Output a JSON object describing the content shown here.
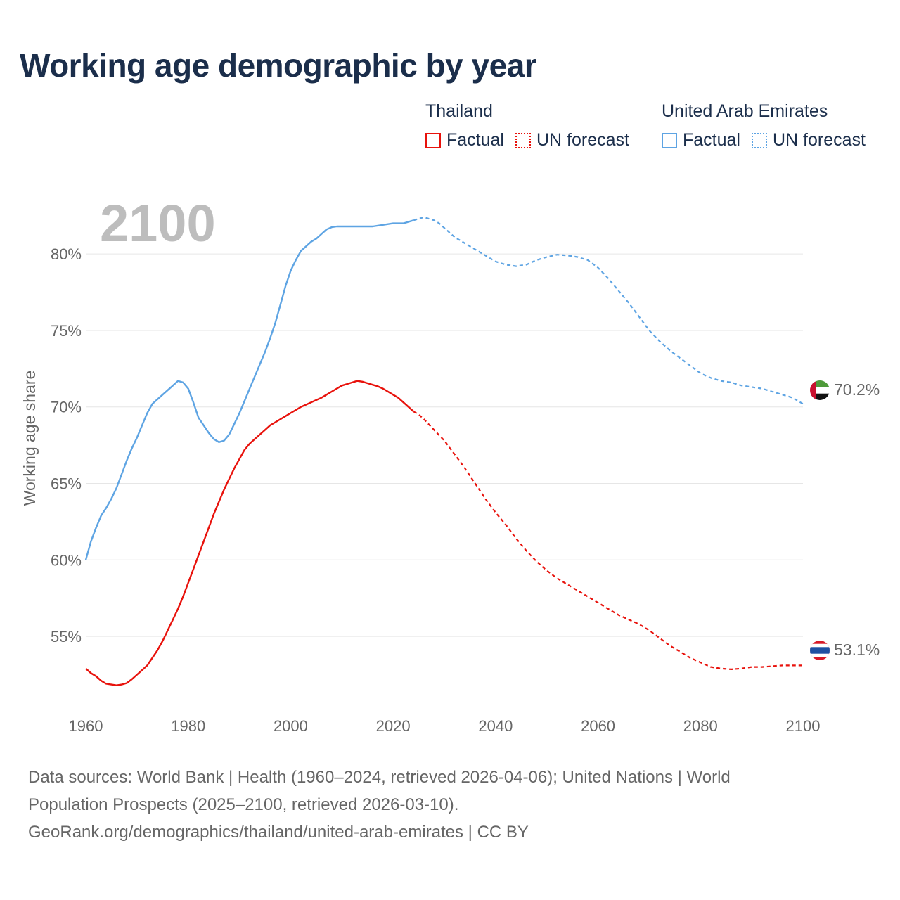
{
  "title": "Working age demographic by year",
  "legend": {
    "groups": [
      {
        "name": "Thailand",
        "color": "#e8120c",
        "factual_label": "Factual",
        "forecast_label": "UN forecast"
      },
      {
        "name": "United Arab Emirates",
        "color": "#5ea4e3",
        "factual_label": "Factual",
        "forecast_label": "UN forecast"
      }
    ]
  },
  "year_label": "2100",
  "footer": {
    "line1": "Data sources: World Bank | Health (1960–2024, retrieved 2026-04-06); United Nations | World",
    "line2": "Population Prospects (2025–2100, retrieved 2026-03-10).",
    "line3": "GeoRank.org/demographics/thailand/united-arab-emirates | CC BY"
  },
  "chart_data": {
    "type": "line",
    "title": "Working age demographic by year",
    "xlabel": "",
    "ylabel": "Working age share",
    "xlim": [
      1960,
      2100
    ],
    "ylim": [
      50.5,
      83.5
    ],
    "x_ticks": [
      1960,
      1980,
      2000,
      2020,
      2040,
      2060,
      2080,
      2100
    ],
    "y_ticks": [
      55,
      60,
      65,
      70,
      75,
      80
    ],
    "y_tick_labels": [
      "55%",
      "60%",
      "65%",
      "70%",
      "75%",
      "80%"
    ],
    "grid": true,
    "factual_end_year": 2024,
    "series": [
      {
        "name": "United Arab Emirates",
        "color": "#5ea4e3",
        "end_label": "70.2%",
        "points": [
          [
            1960,
            60.0
          ],
          [
            1961,
            61.2
          ],
          [
            1962,
            62.1
          ],
          [
            1963,
            62.9
          ],
          [
            1964,
            63.4
          ],
          [
            1965,
            64.0
          ],
          [
            1966,
            64.7
          ],
          [
            1967,
            65.6
          ],
          [
            1968,
            66.5
          ],
          [
            1969,
            67.3
          ],
          [
            1970,
            68.0
          ],
          [
            1971,
            68.8
          ],
          [
            1972,
            69.6
          ],
          [
            1973,
            70.2
          ],
          [
            1974,
            70.5
          ],
          [
            1975,
            70.8
          ],
          [
            1976,
            71.1
          ],
          [
            1977,
            71.4
          ],
          [
            1978,
            71.7
          ],
          [
            1979,
            71.6
          ],
          [
            1980,
            71.2
          ],
          [
            1981,
            70.3
          ],
          [
            1982,
            69.3
          ],
          [
            1983,
            68.8
          ],
          [
            1984,
            68.3
          ],
          [
            1985,
            67.9
          ],
          [
            1986,
            67.7
          ],
          [
            1987,
            67.8
          ],
          [
            1988,
            68.2
          ],
          [
            1989,
            68.9
          ],
          [
            1990,
            69.6
          ],
          [
            1991,
            70.4
          ],
          [
            1992,
            71.2
          ],
          [
            1993,
            72.0
          ],
          [
            1994,
            72.8
          ],
          [
            1995,
            73.6
          ],
          [
            1996,
            74.5
          ],
          [
            1997,
            75.5
          ],
          [
            1998,
            76.7
          ],
          [
            1999,
            77.9
          ],
          [
            2000,
            78.9
          ],
          [
            2001,
            79.6
          ],
          [
            2002,
            80.2
          ],
          [
            2003,
            80.5
          ],
          [
            2004,
            80.8
          ],
          [
            2005,
            81.0
          ],
          [
            2006,
            81.3
          ],
          [
            2007,
            81.6
          ],
          [
            2008,
            81.75
          ],
          [
            2009,
            81.8
          ],
          [
            2010,
            81.8
          ],
          [
            2012,
            81.8
          ],
          [
            2014,
            81.8
          ],
          [
            2016,
            81.8
          ],
          [
            2018,
            81.9
          ],
          [
            2020,
            82.0
          ],
          [
            2022,
            82.0
          ],
          [
            2024,
            82.2
          ],
          [
            2025,
            82.3
          ],
          [
            2026,
            82.4
          ],
          [
            2027,
            82.3
          ],
          [
            2028,
            82.2
          ],
          [
            2029,
            82.0
          ],
          [
            2030,
            81.7
          ],
          [
            2032,
            81.1
          ],
          [
            2034,
            80.7
          ],
          [
            2036,
            80.3
          ],
          [
            2038,
            79.9
          ],
          [
            2040,
            79.5
          ],
          [
            2042,
            79.3
          ],
          [
            2044,
            79.2
          ],
          [
            2046,
            79.3
          ],
          [
            2048,
            79.6
          ],
          [
            2050,
            79.8
          ],
          [
            2052,
            79.95
          ],
          [
            2054,
            79.9
          ],
          [
            2056,
            79.8
          ],
          [
            2058,
            79.6
          ],
          [
            2060,
            79.1
          ],
          [
            2062,
            78.4
          ],
          [
            2064,
            77.6
          ],
          [
            2066,
            76.8
          ],
          [
            2068,
            75.9
          ],
          [
            2070,
            75.0
          ],
          [
            2072,
            74.3
          ],
          [
            2074,
            73.7
          ],
          [
            2076,
            73.2
          ],
          [
            2078,
            72.7
          ],
          [
            2080,
            72.2
          ],
          [
            2082,
            71.9
          ],
          [
            2084,
            71.7
          ],
          [
            2086,
            71.6
          ],
          [
            2088,
            71.4
          ],
          [
            2090,
            71.3
          ],
          [
            2092,
            71.2
          ],
          [
            2094,
            71.0
          ],
          [
            2096,
            70.8
          ],
          [
            2098,
            70.6
          ],
          [
            2100,
            70.2
          ]
        ]
      },
      {
        "name": "Thailand",
        "color": "#e8120c",
        "end_label": "53.1%",
        "points": [
          [
            1960,
            52.9
          ],
          [
            1961,
            52.6
          ],
          [
            1962,
            52.4
          ],
          [
            1963,
            52.1
          ],
          [
            1964,
            51.9
          ],
          [
            1965,
            51.85
          ],
          [
            1966,
            51.8
          ],
          [
            1967,
            51.85
          ],
          [
            1968,
            51.95
          ],
          [
            1969,
            52.2
          ],
          [
            1970,
            52.5
          ],
          [
            1971,
            52.8
          ],
          [
            1972,
            53.1
          ],
          [
            1973,
            53.6
          ],
          [
            1974,
            54.1
          ],
          [
            1975,
            54.7
          ],
          [
            1976,
            55.4
          ],
          [
            1977,
            56.1
          ],
          [
            1978,
            56.8
          ],
          [
            1979,
            57.6
          ],
          [
            1980,
            58.5
          ],
          [
            1981,
            59.4
          ],
          [
            1982,
            60.3
          ],
          [
            1983,
            61.2
          ],
          [
            1984,
            62.1
          ],
          [
            1985,
            63.0
          ],
          [
            1986,
            63.8
          ],
          [
            1987,
            64.6
          ],
          [
            1988,
            65.3
          ],
          [
            1989,
            66.0
          ],
          [
            1990,
            66.6
          ],
          [
            1991,
            67.2
          ],
          [
            1992,
            67.6
          ],
          [
            1993,
            67.9
          ],
          [
            1994,
            68.2
          ],
          [
            1995,
            68.5
          ],
          [
            1996,
            68.8
          ],
          [
            1997,
            69.0
          ],
          [
            1998,
            69.2
          ],
          [
            1999,
            69.4
          ],
          [
            2000,
            69.6
          ],
          [
            2001,
            69.8
          ],
          [
            2002,
            70.0
          ],
          [
            2003,
            70.15
          ],
          [
            2004,
            70.3
          ],
          [
            2005,
            70.45
          ],
          [
            2006,
            70.6
          ],
          [
            2007,
            70.8
          ],
          [
            2008,
            71.0
          ],
          [
            2009,
            71.2
          ],
          [
            2010,
            71.4
          ],
          [
            2011,
            71.5
          ],
          [
            2012,
            71.6
          ],
          [
            2013,
            71.7
          ],
          [
            2014,
            71.65
          ],
          [
            2015,
            71.55
          ],
          [
            2016,
            71.45
          ],
          [
            2017,
            71.35
          ],
          [
            2018,
            71.2
          ],
          [
            2019,
            71.0
          ],
          [
            2020,
            70.8
          ],
          [
            2021,
            70.6
          ],
          [
            2022,
            70.3
          ],
          [
            2023,
            70.0
          ],
          [
            2024,
            69.7
          ],
          [
            2025,
            69.5
          ],
          [
            2026,
            69.2
          ],
          [
            2028,
            68.5
          ],
          [
            2030,
            67.8
          ],
          [
            2032,
            66.9
          ],
          [
            2034,
            66.0
          ],
          [
            2036,
            65.0
          ],
          [
            2038,
            64.0
          ],
          [
            2040,
            63.1
          ],
          [
            2042,
            62.3
          ],
          [
            2044,
            61.4
          ],
          [
            2046,
            60.6
          ],
          [
            2048,
            59.9
          ],
          [
            2050,
            59.3
          ],
          [
            2052,
            58.8
          ],
          [
            2054,
            58.4
          ],
          [
            2056,
            58.0
          ],
          [
            2058,
            57.6
          ],
          [
            2060,
            57.2
          ],
          [
            2062,
            56.8
          ],
          [
            2064,
            56.4
          ],
          [
            2066,
            56.1
          ],
          [
            2068,
            55.8
          ],
          [
            2070,
            55.4
          ],
          [
            2072,
            54.9
          ],
          [
            2074,
            54.4
          ],
          [
            2076,
            54.0
          ],
          [
            2078,
            53.6
          ],
          [
            2080,
            53.3
          ],
          [
            2082,
            53.0
          ],
          [
            2084,
            52.9
          ],
          [
            2086,
            52.85
          ],
          [
            2088,
            52.9
          ],
          [
            2090,
            53.0
          ],
          [
            2092,
            53.0
          ],
          [
            2094,
            53.05
          ],
          [
            2096,
            53.1
          ],
          [
            2098,
            53.1
          ],
          [
            2100,
            53.1
          ]
        ]
      }
    ]
  }
}
